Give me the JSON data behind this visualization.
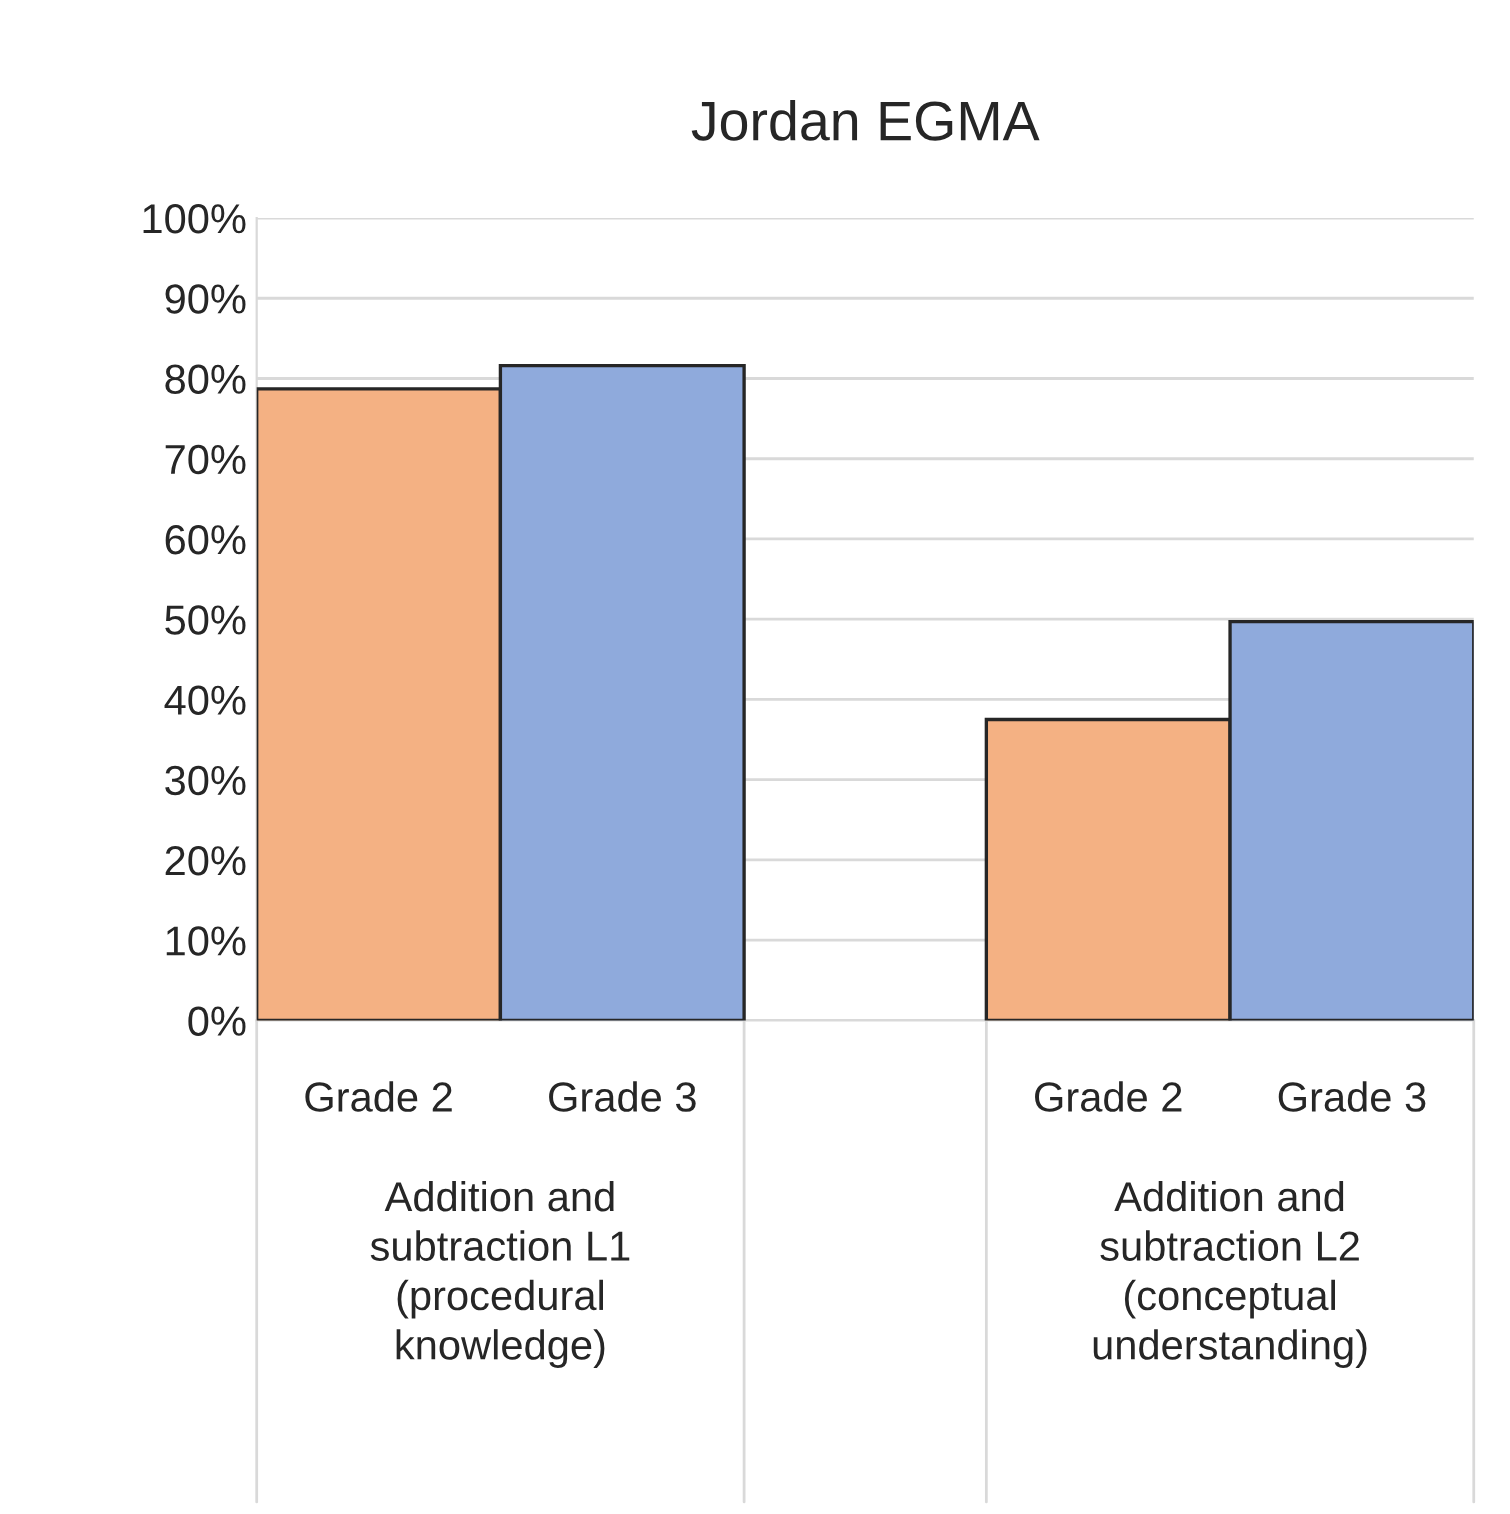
{
  "chart_data": {
    "type": "bar",
    "title": "Jordan EGMA",
    "categories": [
      "Addition and\nsubtraction L1\n(procedural\nknowledge)",
      "Addition and\nsubtraction L2\n(conceptual\nunderstanding)"
    ],
    "series": [
      {
        "name": "Grade 2",
        "color": "#f4b183",
        "values": [
          78.7,
          37.5
        ]
      },
      {
        "name": "Grade 3",
        "color": "#8faadc",
        "values": [
          81.6,
          49.7
        ]
      }
    ],
    "ylim": [
      0,
      100
    ],
    "yticks": [
      {
        "value": 0,
        "label": "0%"
      },
      {
        "value": 10,
        "label": "10%"
      },
      {
        "value": 20,
        "label": "20%"
      },
      {
        "value": 30,
        "label": "30%"
      },
      {
        "value": 40,
        "label": "40%"
      },
      {
        "value": 50,
        "label": "50%"
      },
      {
        "value": 60,
        "label": "60%"
      },
      {
        "value": 70,
        "label": "70%"
      },
      {
        "value": 80,
        "label": "80%"
      },
      {
        "value": 90,
        "label": "90%"
      },
      {
        "value": 100,
        "label": "100%"
      }
    ],
    "grid": "y",
    "legend": false
  }
}
